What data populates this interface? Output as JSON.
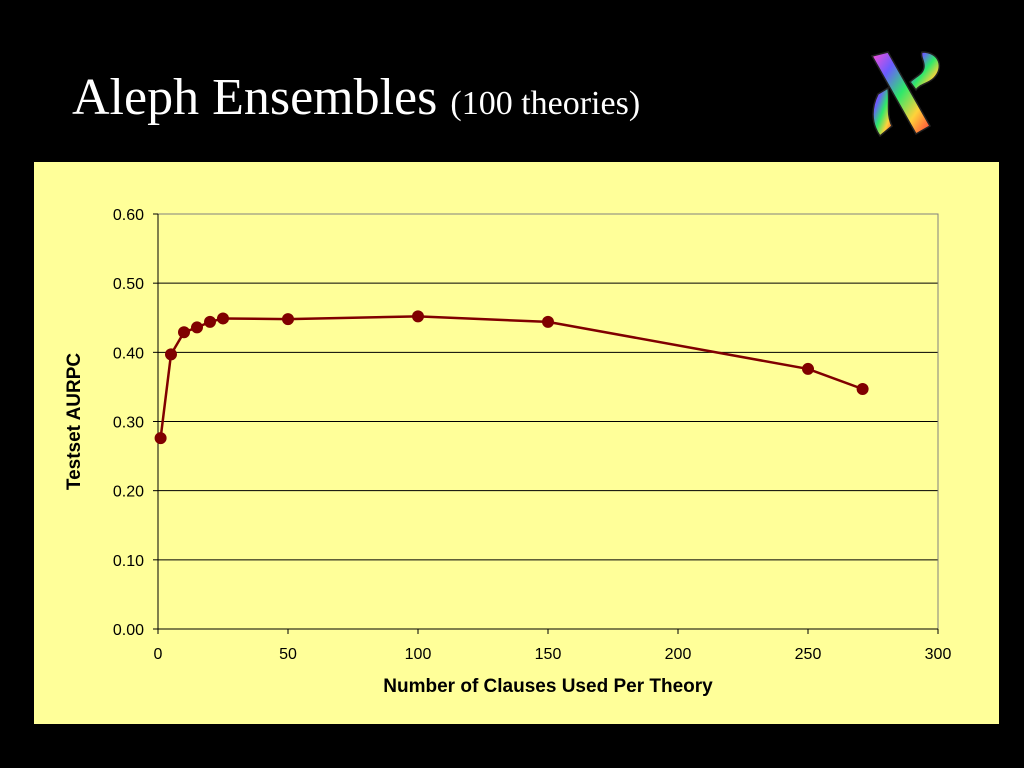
{
  "slide": {
    "title_main": "Aleph Ensembles",
    "title_sub": "(100 theories)",
    "logo_icon": "hebrew-aleph-mosaic-icon"
  },
  "colors": {
    "background": "#000000",
    "panel": "#ffff99",
    "series": "#800000",
    "gridline": "#000000"
  },
  "chart_data": {
    "type": "line",
    "title": "",
    "xlabel": "Number of Clauses Used Per Theory",
    "ylabel": "Testset AURPC",
    "xlim": [
      0,
      300
    ],
    "ylim": [
      0,
      0.6
    ],
    "x_ticks": [
      0,
      50,
      100,
      150,
      200,
      250,
      300
    ],
    "x_tick_labels": [
      "0",
      "50",
      "100",
      "150",
      "200",
      "250",
      "300"
    ],
    "y_ticks": [
      0,
      0.1,
      0.2,
      0.3,
      0.4,
      0.5,
      0.6
    ],
    "y_tick_labels": [
      "0.00",
      "0.10",
      "0.20",
      "0.30",
      "0.40",
      "0.50",
      "0.60"
    ],
    "grid": "horizontal",
    "legend": "none",
    "series": [
      {
        "x": [
          1,
          5,
          10,
          15,
          20,
          25,
          50,
          100,
          150,
          250,
          271
        ],
        "y": [
          0.276,
          0.397,
          0.429,
          0.436,
          0.444,
          0.449,
          0.448,
          0.452,
          0.444,
          0.376,
          0.347
        ]
      }
    ]
  }
}
